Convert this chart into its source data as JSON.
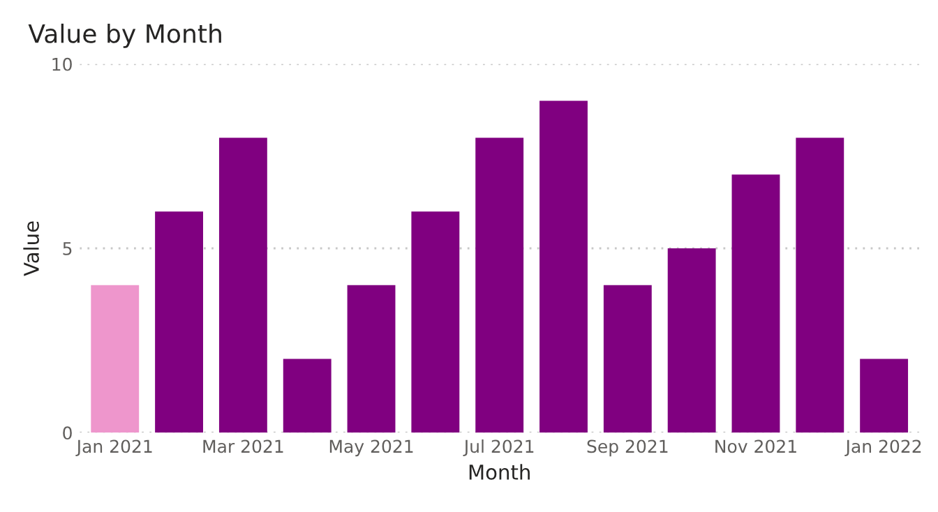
{
  "chart_data": {
    "type": "bar",
    "title": "Value by Month",
    "xlabel": "Month",
    "ylabel": "Value",
    "categories": [
      "Jan 2021",
      null,
      "Mar 2021",
      null,
      "May 2021",
      null,
      "Jul 2021",
      null,
      "Sep 2021",
      null,
      "Nov 2021",
      null,
      "Jan 2022"
    ],
    "values": [
      4,
      6,
      8,
      2,
      4,
      6,
      8,
      9,
      4,
      5,
      7,
      8,
      2
    ],
    "colors": [
      "#ee96cc",
      "#800080",
      "#800080",
      "#800080",
      "#800080",
      "#800080",
      "#800080",
      "#800080",
      "#800080",
      "#800080",
      "#800080",
      "#800080",
      "#800080"
    ],
    "ylim": [
      0,
      10
    ],
    "yticks": [
      0,
      5,
      10
    ],
    "grid": "y"
  }
}
